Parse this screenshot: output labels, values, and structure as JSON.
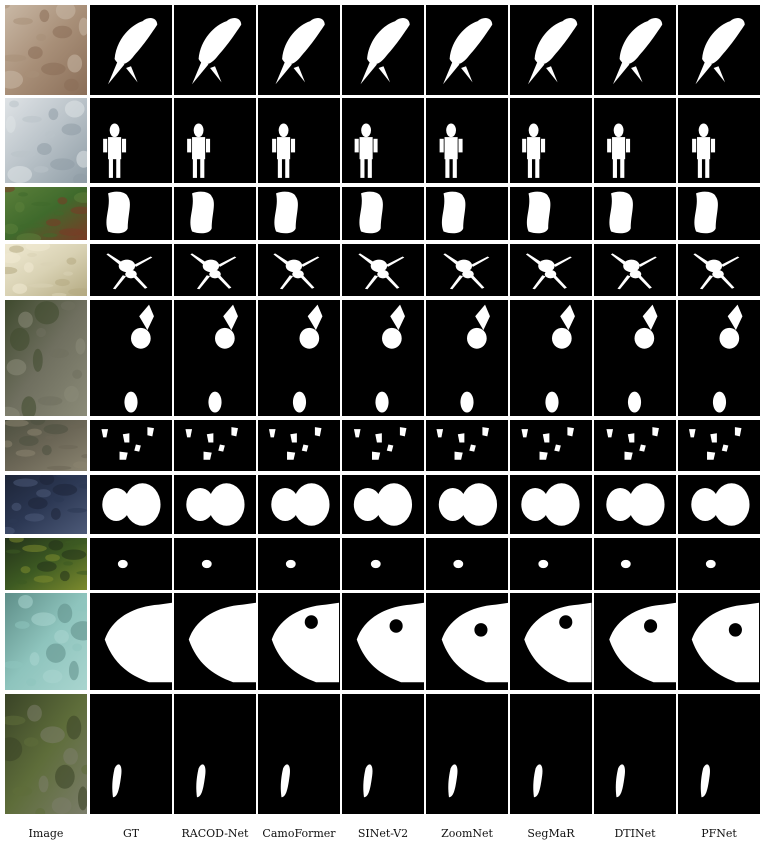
{
  "figure": {
    "columns": [
      "Image",
      "GT",
      "RACOD-Net",
      "CamoFormer",
      "SINet-V2",
      "ZoomNet",
      "SegMaR",
      "DTINet",
      "PFNet"
    ],
    "rows": [
      {
        "scene": "bird-on-branch",
        "photo_colors": [
          "#a88f78",
          "#8a6e58",
          "#c9b8a5"
        ]
      },
      {
        "scene": "person-near-ferris-wheel",
        "photo_colors": [
          "#b9c2c8",
          "#8f9da6",
          "#dfe3e6"
        ]
      },
      {
        "scene": "figure-in-foliage",
        "photo_colors": [
          "#3f6a2c",
          "#7a3a26",
          "#5b7f3a"
        ]
      },
      {
        "scene": "spider-on-flowers",
        "photo_colors": [
          "#d9d2b4",
          "#b4aa82",
          "#f0ead2"
        ]
      },
      {
        "scene": "insects-on-bark",
        "photo_colors": [
          "#6f6f5f",
          "#8b8b78",
          "#3f4a2e"
        ]
      },
      {
        "scene": "insects-on-ground",
        "photo_colors": [
          "#6b6656",
          "#8a8470",
          "#4d5040"
        ]
      },
      {
        "scene": "fish-on-pebbles",
        "photo_colors": [
          "#2c3854",
          "#4d5a78",
          "#1d2538"
        ]
      },
      {
        "scene": "small-creature-in-leaves",
        "photo_colors": [
          "#3d5a22",
          "#7c8a2e",
          "#23321a"
        ]
      },
      {
        "scene": "flatfish-on-sand",
        "photo_colors": [
          "#8ec4bd",
          "#a9d5cf",
          "#5e8e88"
        ]
      },
      {
        "scene": "animal-on-mossy-rocks",
        "photo_colors": [
          "#5e6d3a",
          "#7b7d6a",
          "#3a4427"
        ]
      }
    ]
  }
}
